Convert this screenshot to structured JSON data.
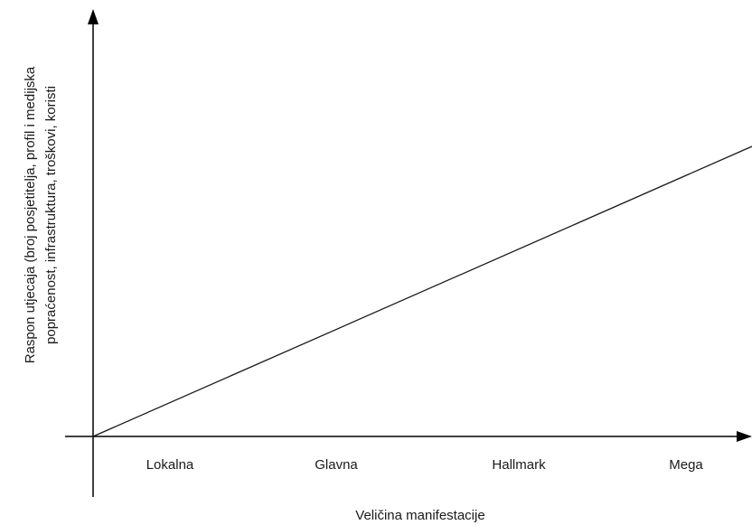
{
  "chart_data": {
    "type": "line",
    "title": "",
    "xlabel": "Veličina manifestacije",
    "ylabel_lines": [
      "Raspon utjecaja (broj posjetitelja, profil i medijska",
      "popraćenost, infrastruktura, troškovi, koristi"
    ],
    "categories": [
      "Lokalna",
      "Glavna",
      "Hallmark",
      "Mega"
    ],
    "grid": false,
    "legend": "none",
    "series": [
      {
        "x": [
          0,
          1
        ],
        "values": [
          0,
          1
        ]
      }
    ],
    "xlim": [
      0,
      1
    ],
    "ylim": [
      0,
      1
    ],
    "colors": {
      "axis": "#000000",
      "line": "#1a1a1a",
      "text": "#1a1a1a"
    }
  }
}
